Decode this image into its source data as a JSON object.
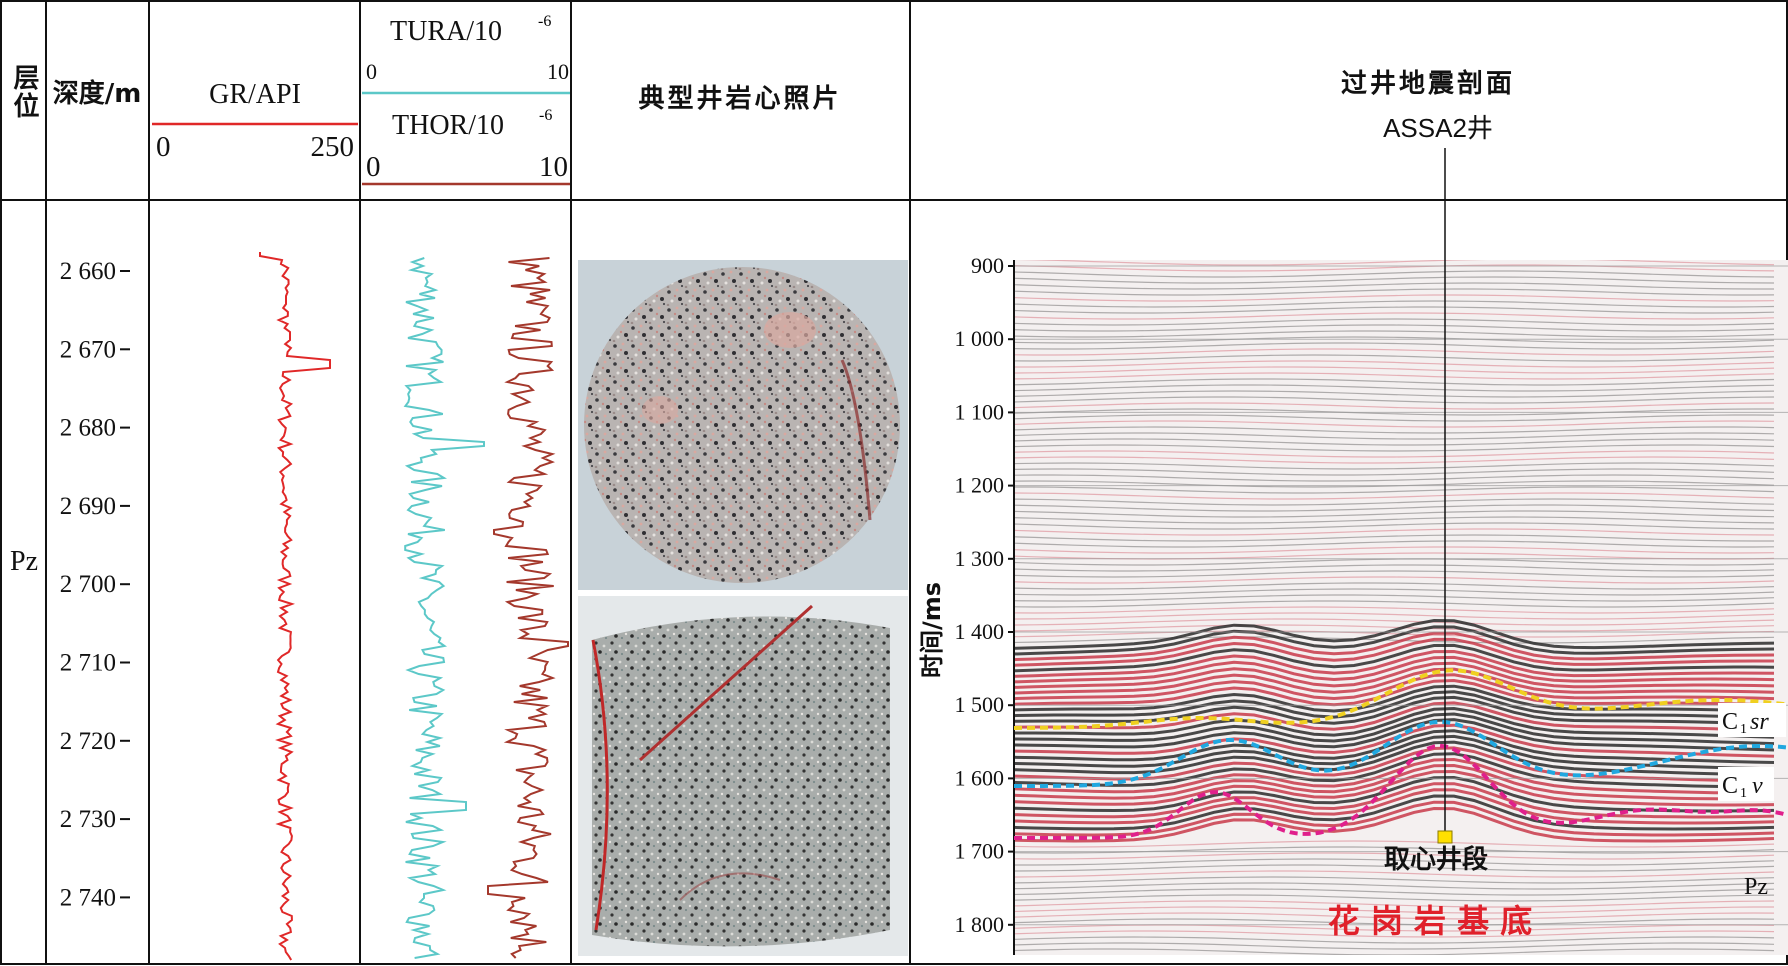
{
  "header": {
    "col_formation": "层位",
    "col_depth": "深度/m",
    "col_gr": "GR/API",
    "gr_min": "0",
    "gr_max": "250",
    "col_tura": "TURA/10",
    "tura_exp": "-6",
    "tura_min": "0",
    "tura_max": "10",
    "col_thor": "THOR/10",
    "thor_exp": "-6",
    "thor_min": "0",
    "thor_max": "10",
    "col_photo": "典型井岩心照片",
    "col_seismic": "过井地震剖面",
    "well_name": "ASSA2井"
  },
  "formation": "Pz",
  "depth_ticks": [
    "2 660",
    "2 670",
    "2 680",
    "2 690",
    "2 700",
    "2 710",
    "2 720",
    "2 730",
    "2 740"
  ],
  "seismic": {
    "axis_label": "时间/ms",
    "time_ticks": [
      "900",
      "1 000",
      "1 100",
      "1 200",
      "1 300",
      "1 400",
      "1 500",
      "1 600",
      "1 700",
      "1 800"
    ],
    "horizon_labels": {
      "c1sr_base": "C",
      "c1sr_sub": "1",
      "c1sr_it": "sr",
      "c1v_base": "C",
      "c1v_sub": "1",
      "c1v_it": "v",
      "pz": "Pz"
    },
    "coring_label": "取心井段",
    "basement_label": "花 岗 岩 基 底"
  },
  "colors": {
    "gr": "#e02828",
    "tura": "#5cc8c8",
    "thor": "#a4382c",
    "c1sr": "#f0d020",
    "c1v": "#20a8e0",
    "pz": "#e0208c",
    "basement": "#e0202a"
  }
}
